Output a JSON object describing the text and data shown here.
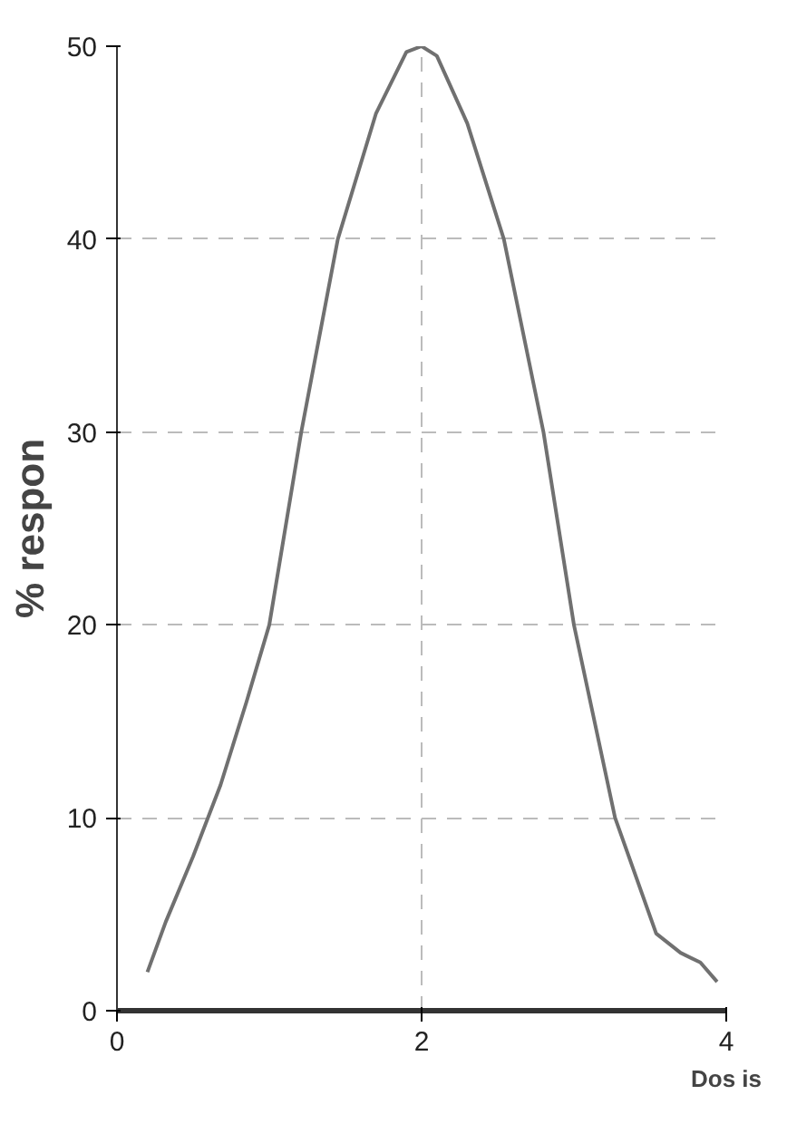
{
  "chart_data": {
    "type": "line",
    "xlabel": "Dos is",
    "ylabel": "% respon",
    "x": [
      0.2,
      0.32,
      0.5,
      0.68,
      0.85,
      1.0,
      1.21,
      1.45,
      1.7,
      1.9,
      2.0,
      2.1,
      2.3,
      2.54,
      2.8,
      3.0,
      3.27,
      3.54,
      3.7,
      3.83,
      3.94
    ],
    "series": [
      {
        "color": "#707070",
        "values": [
          2,
          4.6,
          8,
          11.7,
          16,
          20,
          30,
          40,
          46.5,
          49.7,
          50,
          49.5,
          46,
          40,
          30,
          20,
          10,
          4,
          3,
          2.5,
          1.5
        ]
      }
    ],
    "xlim": [
      0,
      4
    ],
    "ylim": [
      0,
      50
    ],
    "xticks": [
      0,
      2,
      4
    ],
    "yticks": [
      0,
      10,
      20,
      30,
      40,
      50
    ],
    "grid": true,
    "marker": "none",
    "line_style": "solid"
  }
}
